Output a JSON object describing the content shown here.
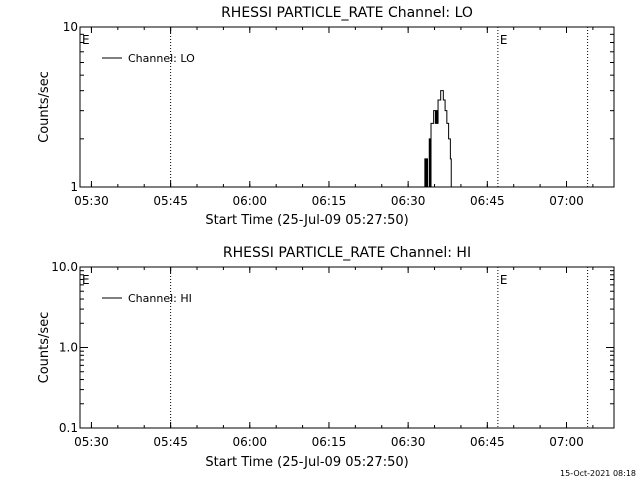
{
  "timestamp": "15-Oct-2021 08:18",
  "chart_data": [
    {
      "type": "line",
      "title": "RHESSI PARTICLE_RATE Channel: LO",
      "xlabel": "Start Time (25-Jul-09 05:27:50)",
      "ylabel": "Counts/sec",
      "y_scale": "log",
      "ylim": [
        1,
        10
      ],
      "y_ticks": [
        "1",
        "10"
      ],
      "xlim": [
        "05:27:50",
        "07:09:00"
      ],
      "x_ticks": [
        "05:30",
        "05:45",
        "06:00",
        "06:15",
        "06:30",
        "06:45",
        "07:00"
      ],
      "legend": "top-left",
      "series": [
        {
          "name": "Channel: LO",
          "points": [
            [
              "06:33:00",
              1
            ],
            [
              "06:33:10",
              1.5
            ],
            [
              "06:33:20",
              1.0
            ],
            [
              "06:33:30",
              1.5
            ],
            [
              "06:33:40",
              1
            ],
            [
              "06:34:00",
              2.0
            ],
            [
              "06:34:10",
              1.0
            ],
            [
              "06:34:20",
              2.5
            ],
            [
              "06:34:40",
              2.5
            ],
            [
              "06:34:50",
              3.0
            ],
            [
              "06:35:10",
              2.5
            ],
            [
              "06:35:20",
              3.0
            ],
            [
              "06:35:30",
              2.5
            ],
            [
              "06:35:40",
              3.5
            ],
            [
              "06:36:00",
              3.5
            ],
            [
              "06:36:10",
              4.0
            ],
            [
              "06:36:30",
              4.0
            ],
            [
              "06:36:40",
              3.5
            ],
            [
              "06:37:00",
              3.0
            ],
            [
              "06:37:20",
              2.5
            ],
            [
              "06:37:40",
              2.0
            ],
            [
              "06:38:00",
              1.5
            ],
            [
              "06:38:10",
              1
            ]
          ]
        }
      ],
      "markers": [
        {
          "time": "05:45:00",
          "label": ""
        },
        {
          "time": "06:47:00",
          "label": "E"
        },
        {
          "time": "07:04:00",
          "label": ""
        }
      ],
      "left_marker_label": "E"
    },
    {
      "type": "line",
      "title": "RHESSI PARTICLE_RATE Channel: HI",
      "xlabel": "Start Time (25-Jul-09 05:27:50)",
      "ylabel": "Counts/sec",
      "y_scale": "log",
      "ylim": [
        0.1,
        10
      ],
      "y_ticks": [
        "0.1",
        "1.0",
        "10.0"
      ],
      "xlim": [
        "05:27:50",
        "07:09:00"
      ],
      "x_ticks": [
        "05:30",
        "05:45",
        "06:00",
        "06:15",
        "06:30",
        "06:45",
        "07:00"
      ],
      "legend": "top-left",
      "series": [
        {
          "name": "Channel: HI",
          "points": []
        }
      ],
      "markers": [
        {
          "time": "05:45:00",
          "label": ""
        },
        {
          "time": "06:47:00",
          "label": "E"
        },
        {
          "time": "07:04:00",
          "label": ""
        }
      ],
      "left_marker_label": "E"
    }
  ]
}
